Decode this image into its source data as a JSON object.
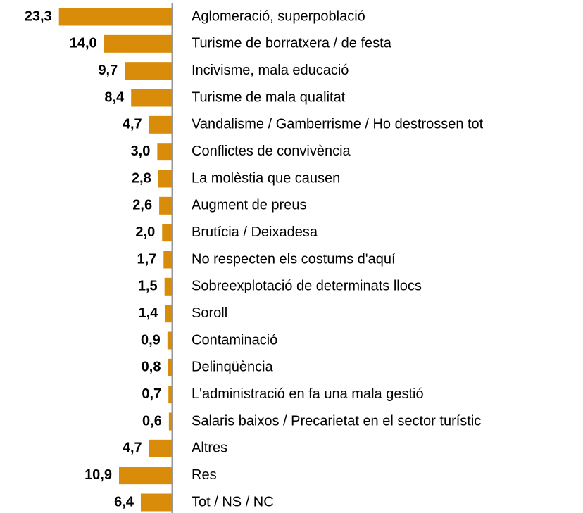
{
  "chart_data": {
    "type": "bar",
    "orientation": "horizontal",
    "color": "#d98c0a",
    "categories": [
      "Aglomeració, superpoblació",
      "Turisme de borratxera / de festa",
      "Incivisme, mala educació",
      "Turisme de mala qualitat",
      "Vandalisme / Gamberrisme / Ho destrossen tot",
      "Conflictes de convivència",
      "La molèstia que causen",
      "Augment de preus",
      "Brutícia / Deixadesa",
      "No respecten els costums d'aquí",
      "Sobreexplotació de determinats llocs",
      "Soroll",
      "Contaminació",
      "Delinqüència",
      "L'administració en fa una mala gestió",
      "Salaris baixos / Precarietat en el sector turístic",
      "Altres",
      "Res",
      "Tot / NS / NC"
    ],
    "values": [
      23.3,
      14.0,
      9.7,
      8.4,
      4.7,
      3.0,
      2.8,
      2.6,
      2.0,
      1.7,
      1.5,
      1.4,
      0.9,
      0.8,
      0.7,
      0.6,
      4.7,
      10.9,
      6.4
    ],
    "value_labels": [
      "23,3",
      "14,0",
      "9,7",
      "8,4",
      "4,7",
      "3,0",
      "2,8",
      "2,6",
      "2,0",
      "1,7",
      "1,5",
      "1,4",
      "0,9",
      "0,8",
      "0,7",
      "0,6",
      "4,7",
      "10,9",
      "6,4"
    ],
    "xlim": [
      0,
      25
    ]
  }
}
